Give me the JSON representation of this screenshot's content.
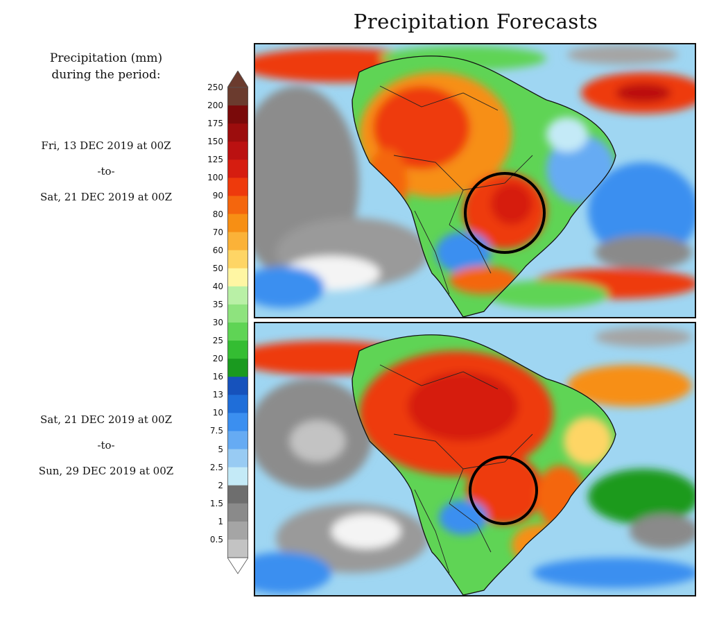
{
  "title": "Precipitation Forecasts",
  "legend": {
    "heading_line1": "Precipitation (mm)",
    "heading_line2": "during the period:",
    "unit": "mm",
    "levels": [
      {
        "label": "250",
        "color": "#6b3b2e"
      },
      {
        "label": "200",
        "color": "#7a0a0a"
      },
      {
        "label": "175",
        "color": "#9c0d0d"
      },
      {
        "label": "150",
        "color": "#bb1111"
      },
      {
        "label": "125",
        "color": "#d61d10"
      },
      {
        "label": "100",
        "color": "#ee3a0c"
      },
      {
        "label": "90",
        "color": "#f4660d"
      },
      {
        "label": "80",
        "color": "#f78f14"
      },
      {
        "label": "70",
        "color": "#fbb238"
      },
      {
        "label": "60",
        "color": "#fed565"
      },
      {
        "label": "50",
        "color": "#fff6a3"
      },
      {
        "label": "40",
        "color": "#b9f0a6"
      },
      {
        "label": "35",
        "color": "#8ee37e"
      },
      {
        "label": "30",
        "color": "#5fd455"
      },
      {
        "label": "25",
        "color": "#34bd32"
      },
      {
        "label": "20",
        "color": "#1a9a1f"
      },
      {
        "label": "16",
        "color": "#1652bc"
      },
      {
        "label": "13",
        "color": "#1f6ed9"
      },
      {
        "label": "10",
        "color": "#3b8ff0"
      },
      {
        "label": "7.5",
        "color": "#66abf3"
      },
      {
        "label": "5",
        "color": "#98cbf3"
      },
      {
        "label": "2.5",
        "color": "#c4eaf7"
      },
      {
        "label": "2",
        "color": "#6e6e6e"
      },
      {
        "label": "1.5",
        "color": "#8a8a8a"
      },
      {
        "label": "1",
        "color": "#a5a5a5"
      },
      {
        "label": "0.5",
        "color": "#c3c3c3"
      }
    ],
    "cap_top_color": "#6b3b2e",
    "cap_bottom_color": "#ffffff"
  },
  "periods": [
    {
      "start": "Fri, 13 DEC 2019 at 00Z",
      "sep": "-to-",
      "end": "Sat, 21 DEC 2019 at 00Z"
    },
    {
      "start": "Sat, 21 DEC 2019 at 00Z",
      "sep": "-to-",
      "end": "Sun, 29 DEC 2019 at 00Z"
    }
  ],
  "maps": [
    {
      "id": "week1",
      "region": "South America",
      "highlight": "circled area over central-west Brazil / Paraguay border"
    },
    {
      "id": "week2",
      "region": "South America",
      "highlight": "circled area over central-west Brazil / Paraguay border"
    }
  ]
}
